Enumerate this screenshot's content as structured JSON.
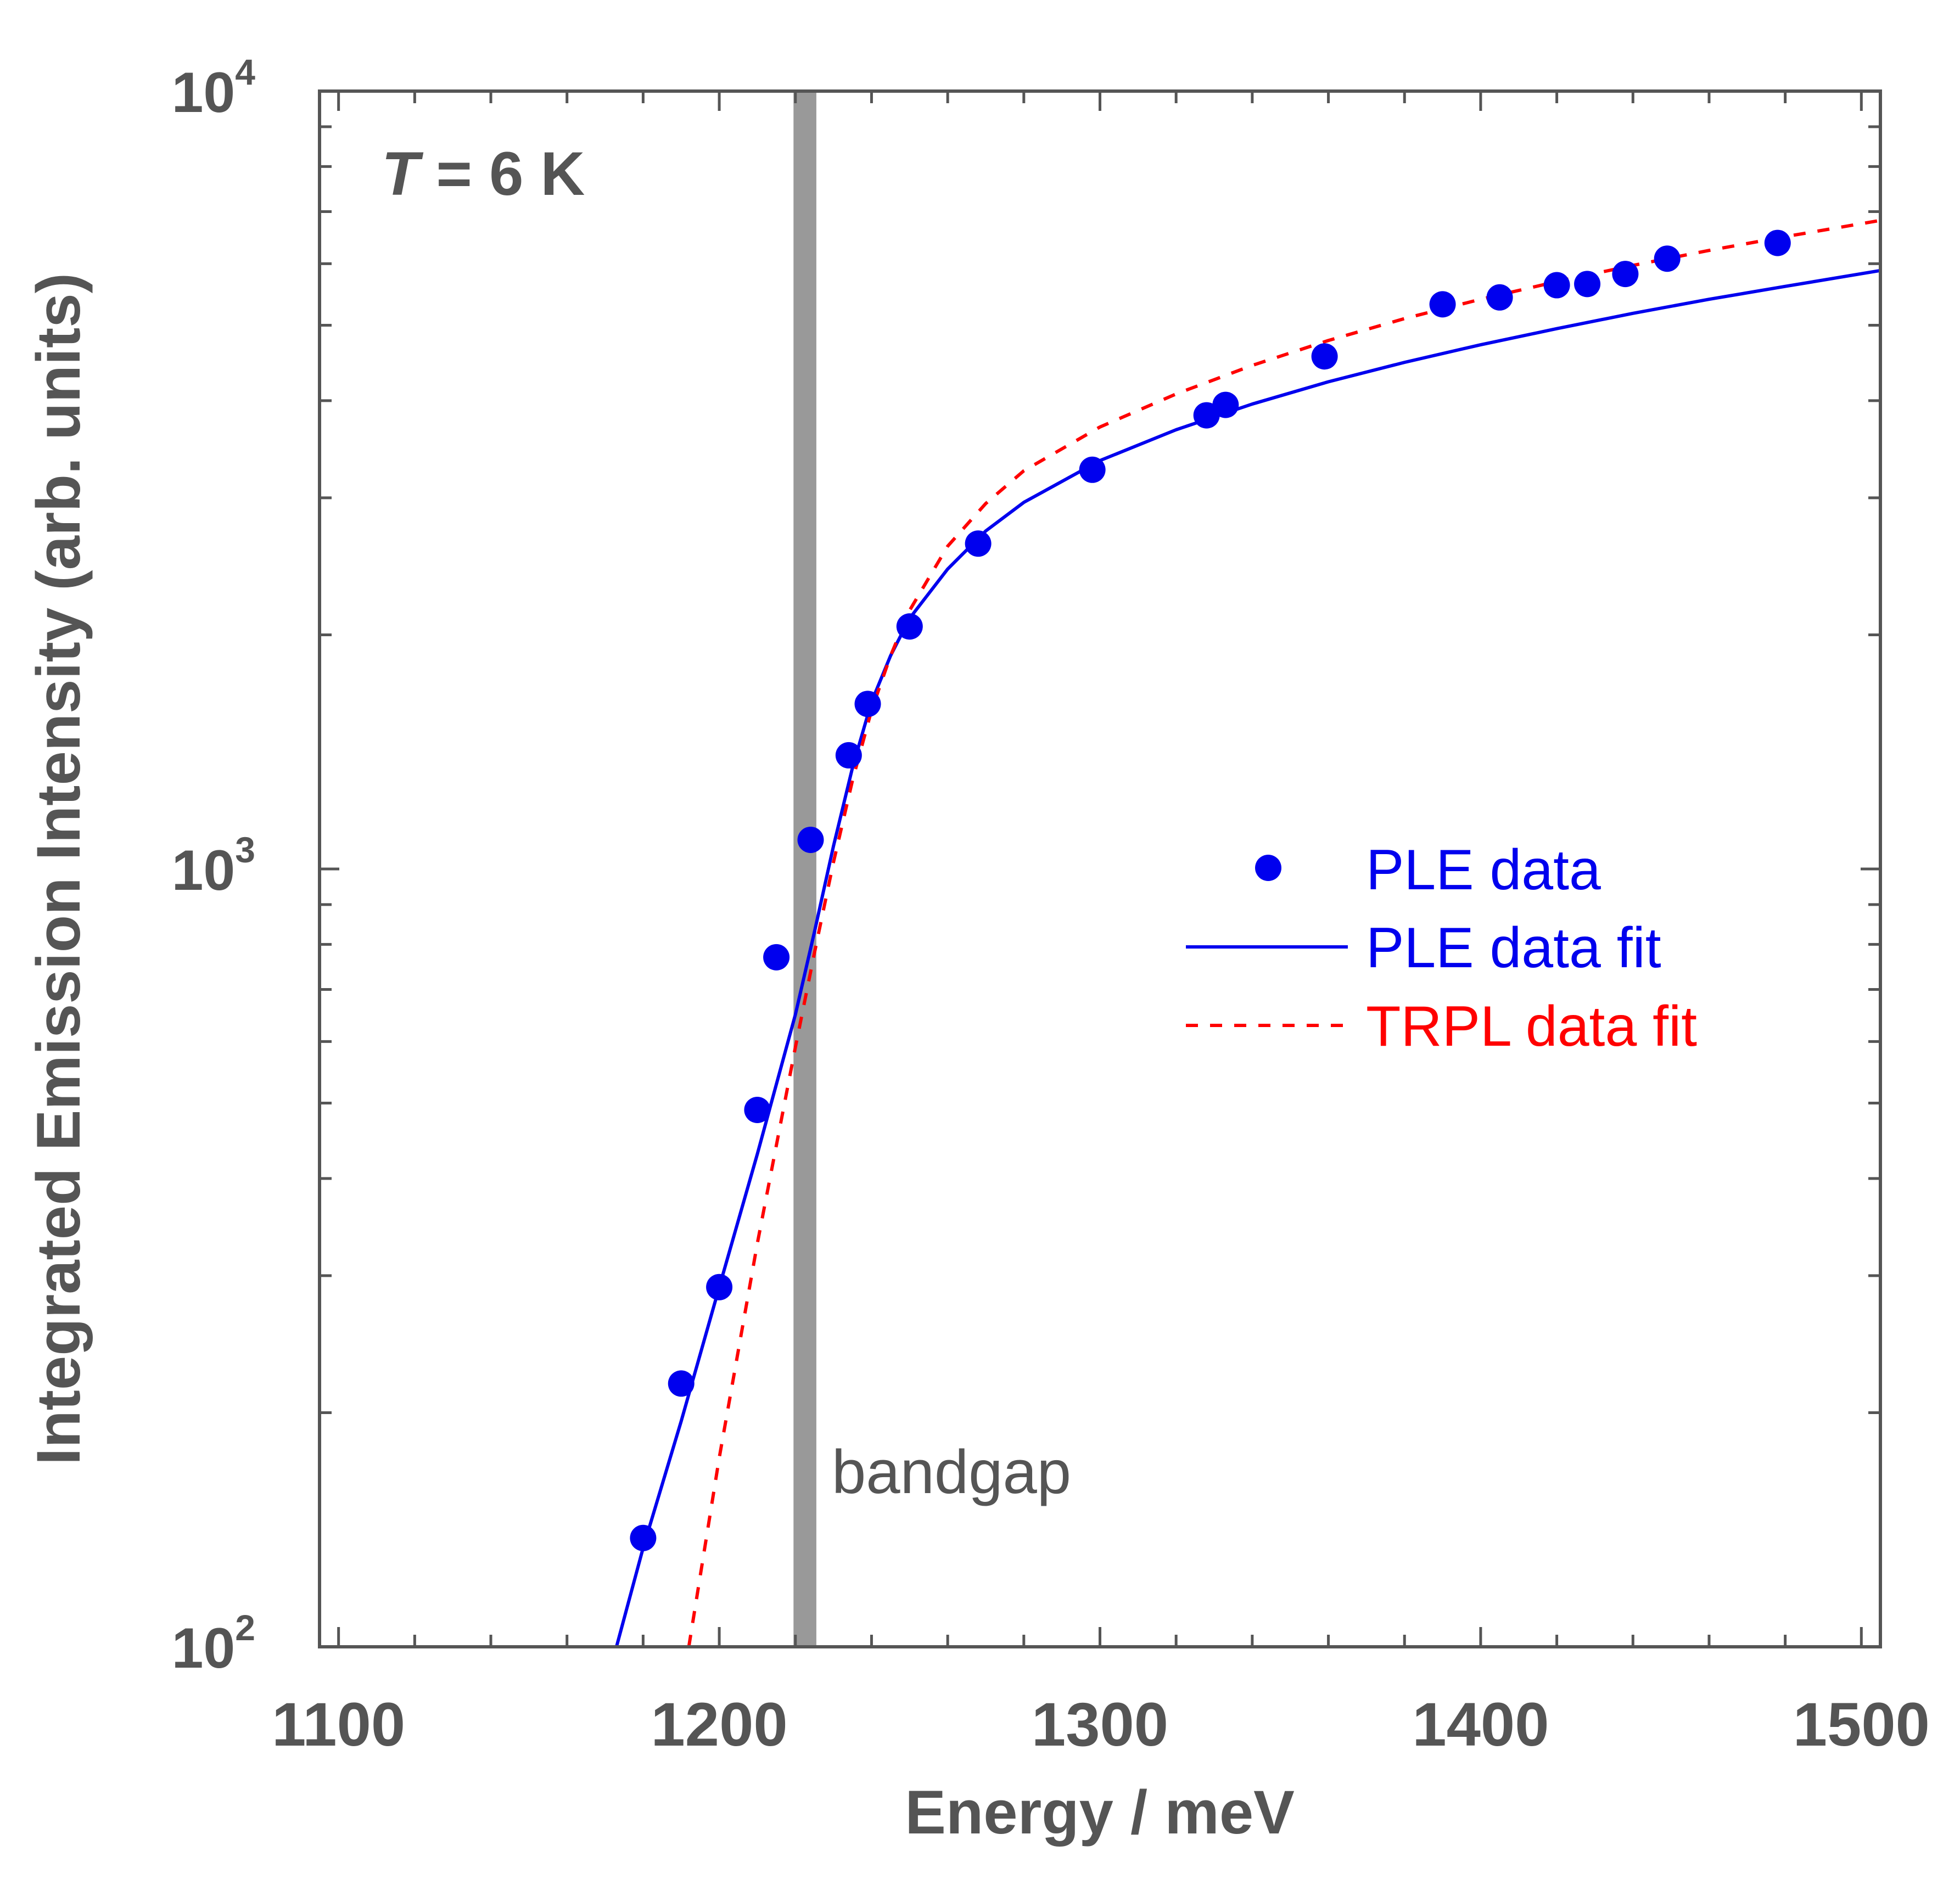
{
  "chart_data": {
    "type": "scatter",
    "title": "",
    "xlabel": "Energy / meV",
    "ylabel": "Integrated Emission Intensity (arb. units)",
    "xlim": [
      1095,
      1505
    ],
    "ylim": [
      100,
      10000
    ],
    "yscale": "log",
    "x_ticks": [
      1100,
      1200,
      1300,
      1400,
      1500
    ],
    "x_tick_labels": [
      "1100",
      "1200",
      "1300",
      "1400",
      "1500"
    ],
    "y_ticks": [
      100,
      1000,
      10000
    ],
    "y_tick_labels": [
      {
        "base": "10",
        "exp": "2"
      },
      {
        "base": "10",
        "exp": "3"
      },
      {
        "base": "10",
        "exp": "4"
      }
    ],
    "annotation_temperature": {
      "symbol": "T",
      "text": " = 6 K"
    },
    "bandgap": {
      "label": "bandgap",
      "energy": 1222.5,
      "width_meV": 6,
      "color": "#999999"
    },
    "legend": {
      "position": "right-middle"
    },
    "series": [
      {
        "name": "PLE data",
        "kind": "points",
        "color": "#0000ee",
        "x": [
          1180,
          1190,
          1200,
          1210,
          1215,
          1224,
          1234,
          1239,
          1250,
          1268,
          1298,
          1328,
          1333,
          1359,
          1390,
          1405,
          1420,
          1428,
          1438,
          1449,
          1478
        ],
        "y": [
          138,
          218,
          290,
          490,
          770,
          1090,
          1400,
          1630,
          2050,
          2620,
          3260,
          3830,
          3950,
          4560,
          5320,
          5430,
          5630,
          5650,
          5820,
          6090,
          6380
        ]
      },
      {
        "name": "PLE data fit",
        "kind": "line",
        "color": "#0000ee",
        "dash": "",
        "x": [
          1173,
          1180,
          1190,
          1200,
          1210,
          1220,
          1225,
          1230,
          1235,
          1240,
          1245,
          1250,
          1260,
          1270,
          1280,
          1300,
          1320,
          1340,
          1360,
          1380,
          1400,
          1420,
          1440,
          1460,
          1480,
          1505
        ],
        "y": [
          100,
          134,
          195,
          290,
          430,
          650,
          830,
          1070,
          1350,
          1640,
          1880,
          2100,
          2430,
          2720,
          2960,
          3350,
          3670,
          3960,
          4230,
          4480,
          4720,
          4950,
          5180,
          5400,
          5610,
          5880
        ]
      },
      {
        "name": "TRPL data fit",
        "kind": "line",
        "color": "#ff0000",
        "dash": "22,22",
        "x": [
          1192,
          1200,
          1210,
          1220,
          1225,
          1230,
          1235,
          1240,
          1245,
          1250,
          1260,
          1270,
          1280,
          1300,
          1320,
          1340,
          1360,
          1380,
          1400,
          1420,
          1440,
          1460,
          1480,
          1505
        ],
        "y": [
          100,
          175,
          330,
          590,
          780,
          1020,
          1300,
          1600,
          1880,
          2150,
          2600,
          2950,
          3250,
          3700,
          4080,
          4440,
          4780,
          5100,
          5400,
          5690,
          5970,
          6240,
          6500,
          6820
        ]
      }
    ]
  }
}
